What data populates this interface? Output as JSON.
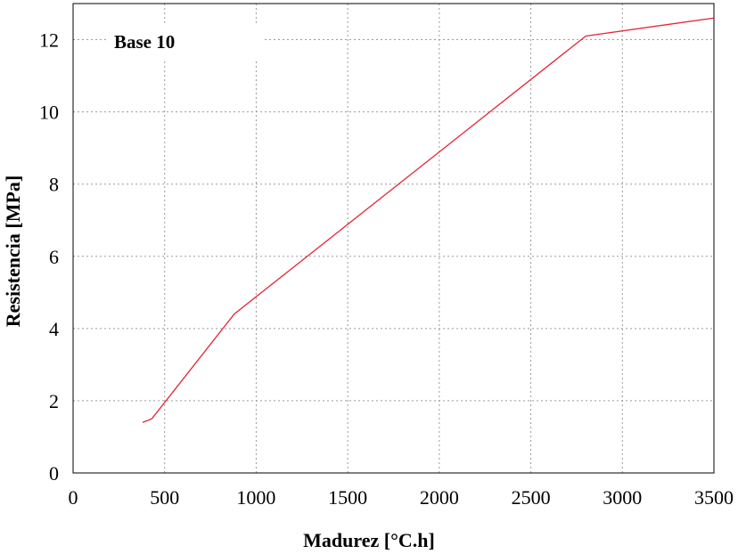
{
  "chart_data": {
    "type": "line",
    "title": "",
    "annotation": "Base 10",
    "xlabel": "Madurez [°C.h]",
    "ylabel": "Resistencia [MPa]",
    "xlim": [
      0,
      3500
    ],
    "ylim": [
      0,
      13
    ],
    "xticks": [
      0,
      500,
      1000,
      1500,
      2000,
      2500,
      3000,
      3500
    ],
    "yticks": [
      0,
      2,
      4,
      6,
      8,
      10,
      12
    ],
    "grid": true,
    "legend": "none",
    "series": [
      {
        "color": "#e32636",
        "x": [
          380,
          430,
          880,
          2800,
          3500
        ],
        "y": [
          1.4,
          1.5,
          4.4,
          12.1,
          12.6
        ]
      }
    ]
  }
}
